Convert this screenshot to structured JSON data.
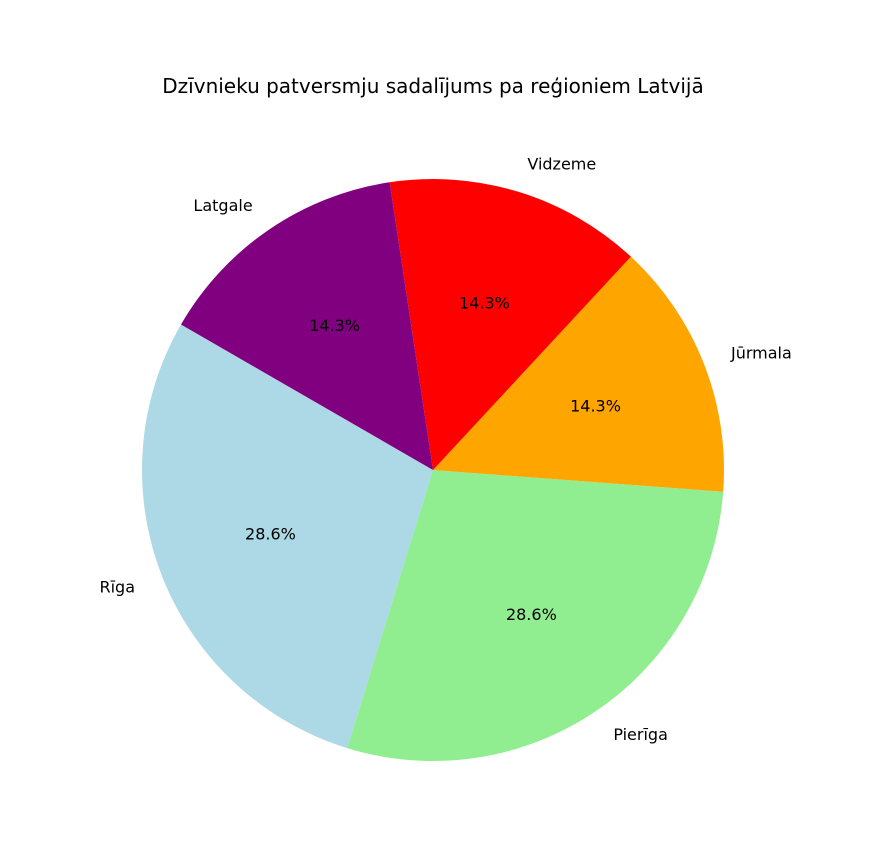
{
  "chart_data": {
    "type": "pie",
    "title": "Dzīvnieku patversmju sadalījums pa reģioniem Latvijā",
    "start_angle_deg": 150,
    "direction": "counterclockwise",
    "slices": [
      {
        "label": "Rīga",
        "value": 28.6,
        "pct_label": "28.6%",
        "color": "#ADD8E6"
      },
      {
        "label": "Pierīga",
        "value": 28.6,
        "pct_label": "28.6%",
        "color": "#90EE90"
      },
      {
        "label": "Jūrmala",
        "value": 14.3,
        "pct_label": "14.3%",
        "color": "#FFA500"
      },
      {
        "label": "Vidzeme",
        "value": 14.3,
        "pct_label": "14.3%",
        "color": "#FF0000"
      },
      {
        "label": "Latgale",
        "value": 14.3,
        "pct_label": "14.3%",
        "color": "#800080"
      }
    ]
  }
}
